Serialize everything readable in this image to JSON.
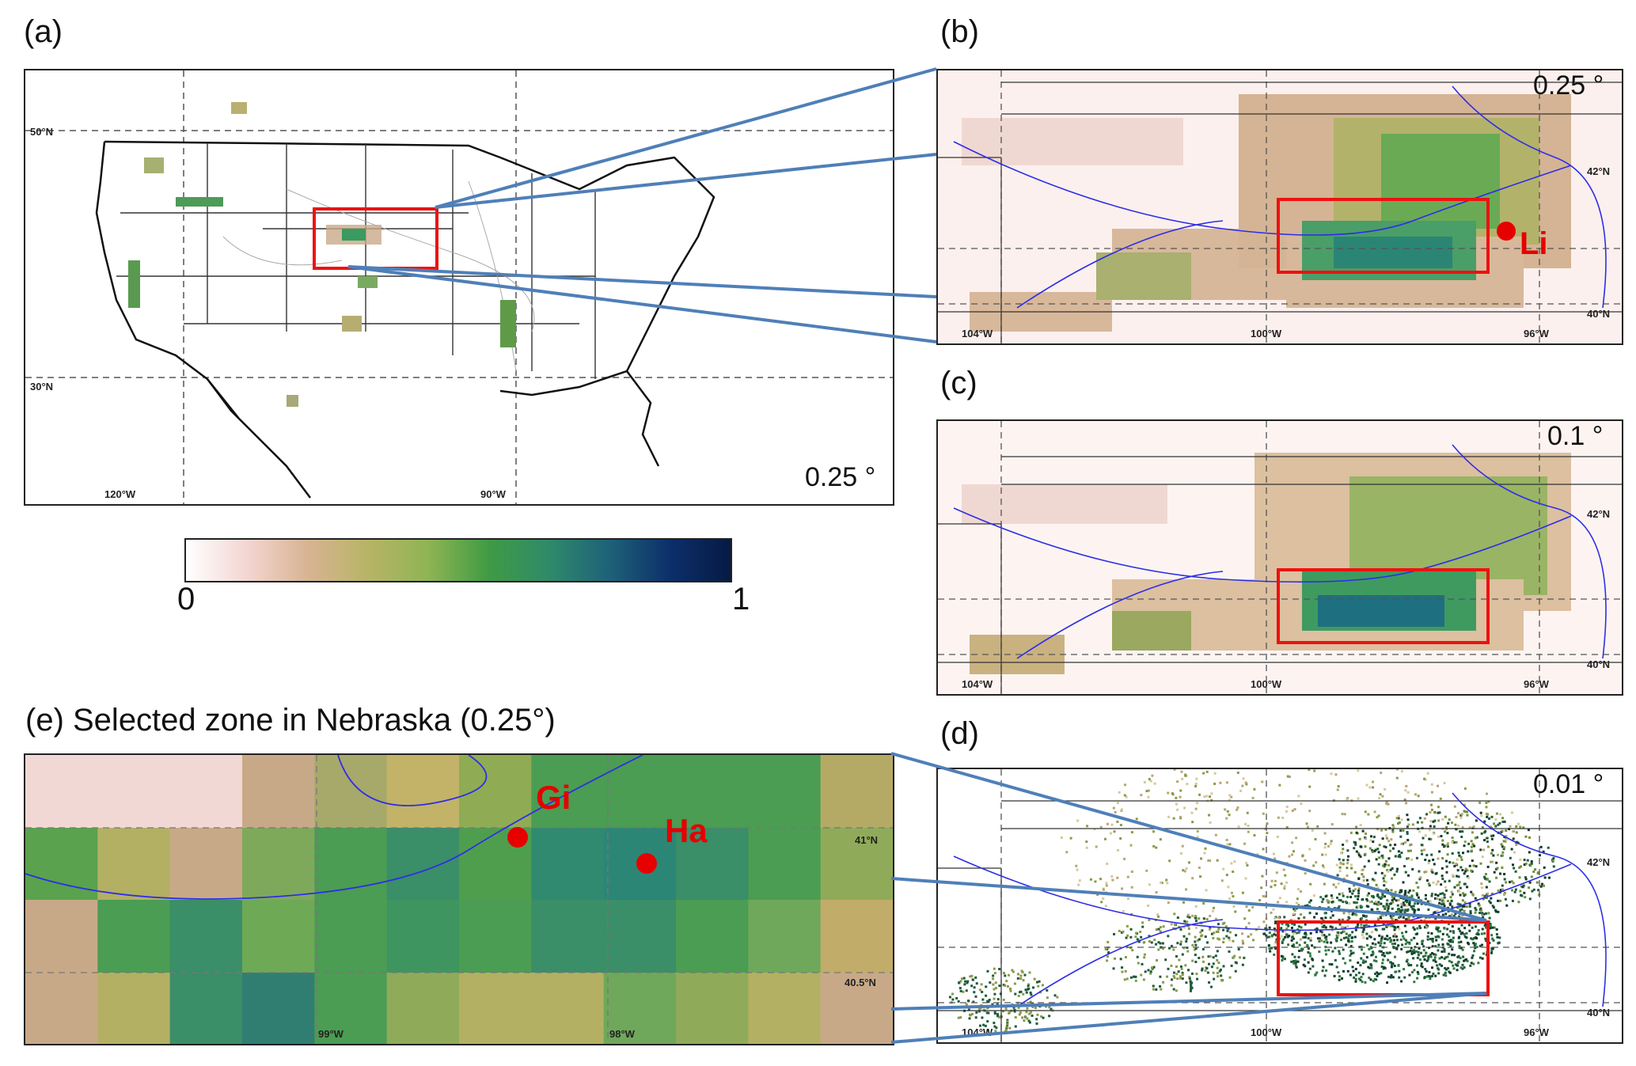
{
  "panels": {
    "a": {
      "label": "(a)",
      "resolution": "0.25 °",
      "lat_ticks": [
        "50°N",
        "30°N"
      ],
      "lon_ticks": [
        "120°W",
        "90°W"
      ]
    },
    "b": {
      "label": "(b)",
      "resolution": "0.25 °",
      "lat_ticks": [
        "42°N",
        "40°N"
      ],
      "lon_ticks": [
        "104°W",
        "100°W",
        "96°W"
      ]
    },
    "c": {
      "label": "(c)",
      "resolution": "0.1 °",
      "lat_ticks": [
        "42°N",
        "40°N"
      ],
      "lon_ticks": [
        "104°W",
        "100°W",
        "96°W"
      ]
    },
    "d": {
      "label": "(d)",
      "resolution": "0.01 °",
      "lat_ticks": [
        "42°N",
        "40°N"
      ],
      "lon_ticks": [
        "104°W",
        "100°W",
        "96°W"
      ]
    },
    "e": {
      "label": "(e) Selected zone in Nebraska (0.25°)",
      "lat_ticks": [
        "41°N",
        "40.5°N"
      ],
      "lon_ticks": [
        "99°W",
        "98°W"
      ]
    }
  },
  "colorbar": {
    "min": "0",
    "max": "1",
    "colors": [
      "#ffffff",
      "#f3d6d2",
      "#d8b493",
      "#b8b466",
      "#8fb454",
      "#3f9b44",
      "#2f8a6a",
      "#1e6178",
      "#0c2f6a",
      "#061a44"
    ]
  },
  "sites": {
    "li": "Li",
    "gi": "Gi",
    "ha": "Ha"
  },
  "colors": {
    "highlight_box": "#ee1111",
    "connector": "#4f7fb8",
    "river": "#2e2ee6",
    "site": "#e60000"
  }
}
